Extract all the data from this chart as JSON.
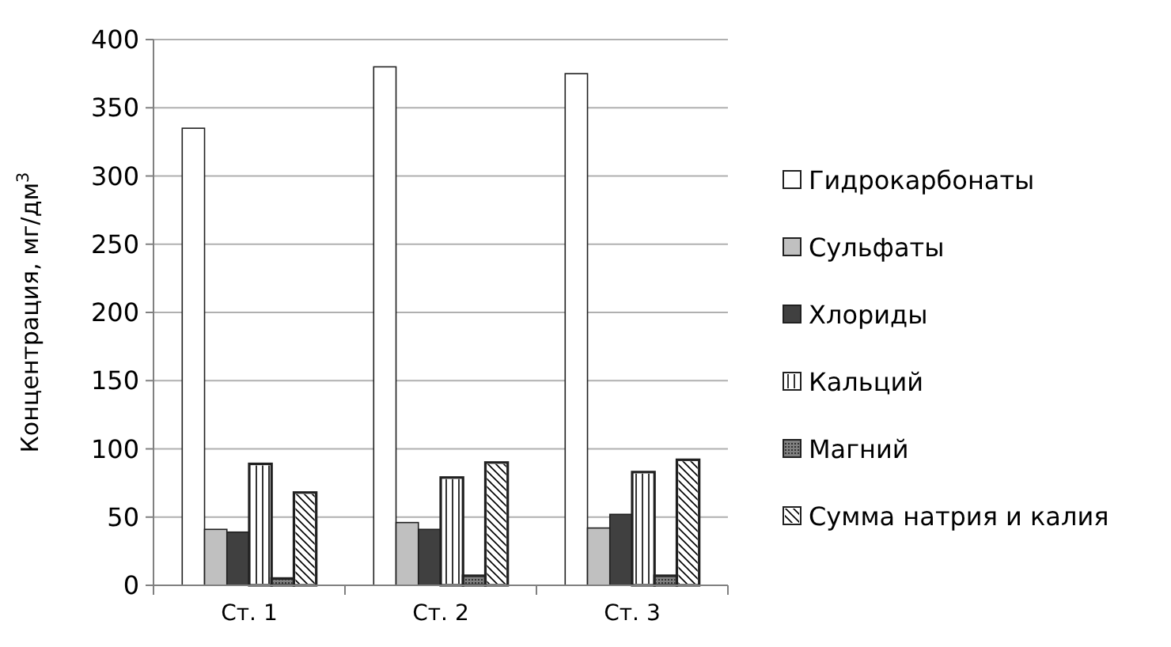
{
  "chart_data": {
    "type": "bar",
    "ylabel": "Концентрация, мг/дм$^{3}$",
    "categories": [
      "Ст. 1",
      "Ст. 2",
      "Ст. 3"
    ],
    "series": [
      {
        "name": "Гидрокарбонаты",
        "color": "#ffffff",
        "values": [
          335,
          380,
          375
        ]
      },
      {
        "name": "Сульфаты",
        "color": "#c0c0c0",
        "values": [
          41,
          46,
          42
        ]
      },
      {
        "name": "Хлориды",
        "color": "#404040",
        "values": [
          39,
          41,
          52
        ]
      },
      {
        "name": "Кальций",
        "color": "#ffffff",
        "values": [
          89,
          79,
          83
        ]
      },
      {
        "name": "Магний",
        "color": "#808080",
        "values": [
          5,
          7,
          7
        ]
      },
      {
        "name": "Сумма натрия и калия",
        "color": "#ffffff",
        "values": [
          68,
          90,
          92
        ]
      }
    ],
    "ylim": [
      0,
      400
    ],
    "yticks": [
      0,
      50,
      100,
      150,
      200,
      250,
      300,
      350,
      400
    ],
    "grid": "y",
    "legend": "right"
  }
}
